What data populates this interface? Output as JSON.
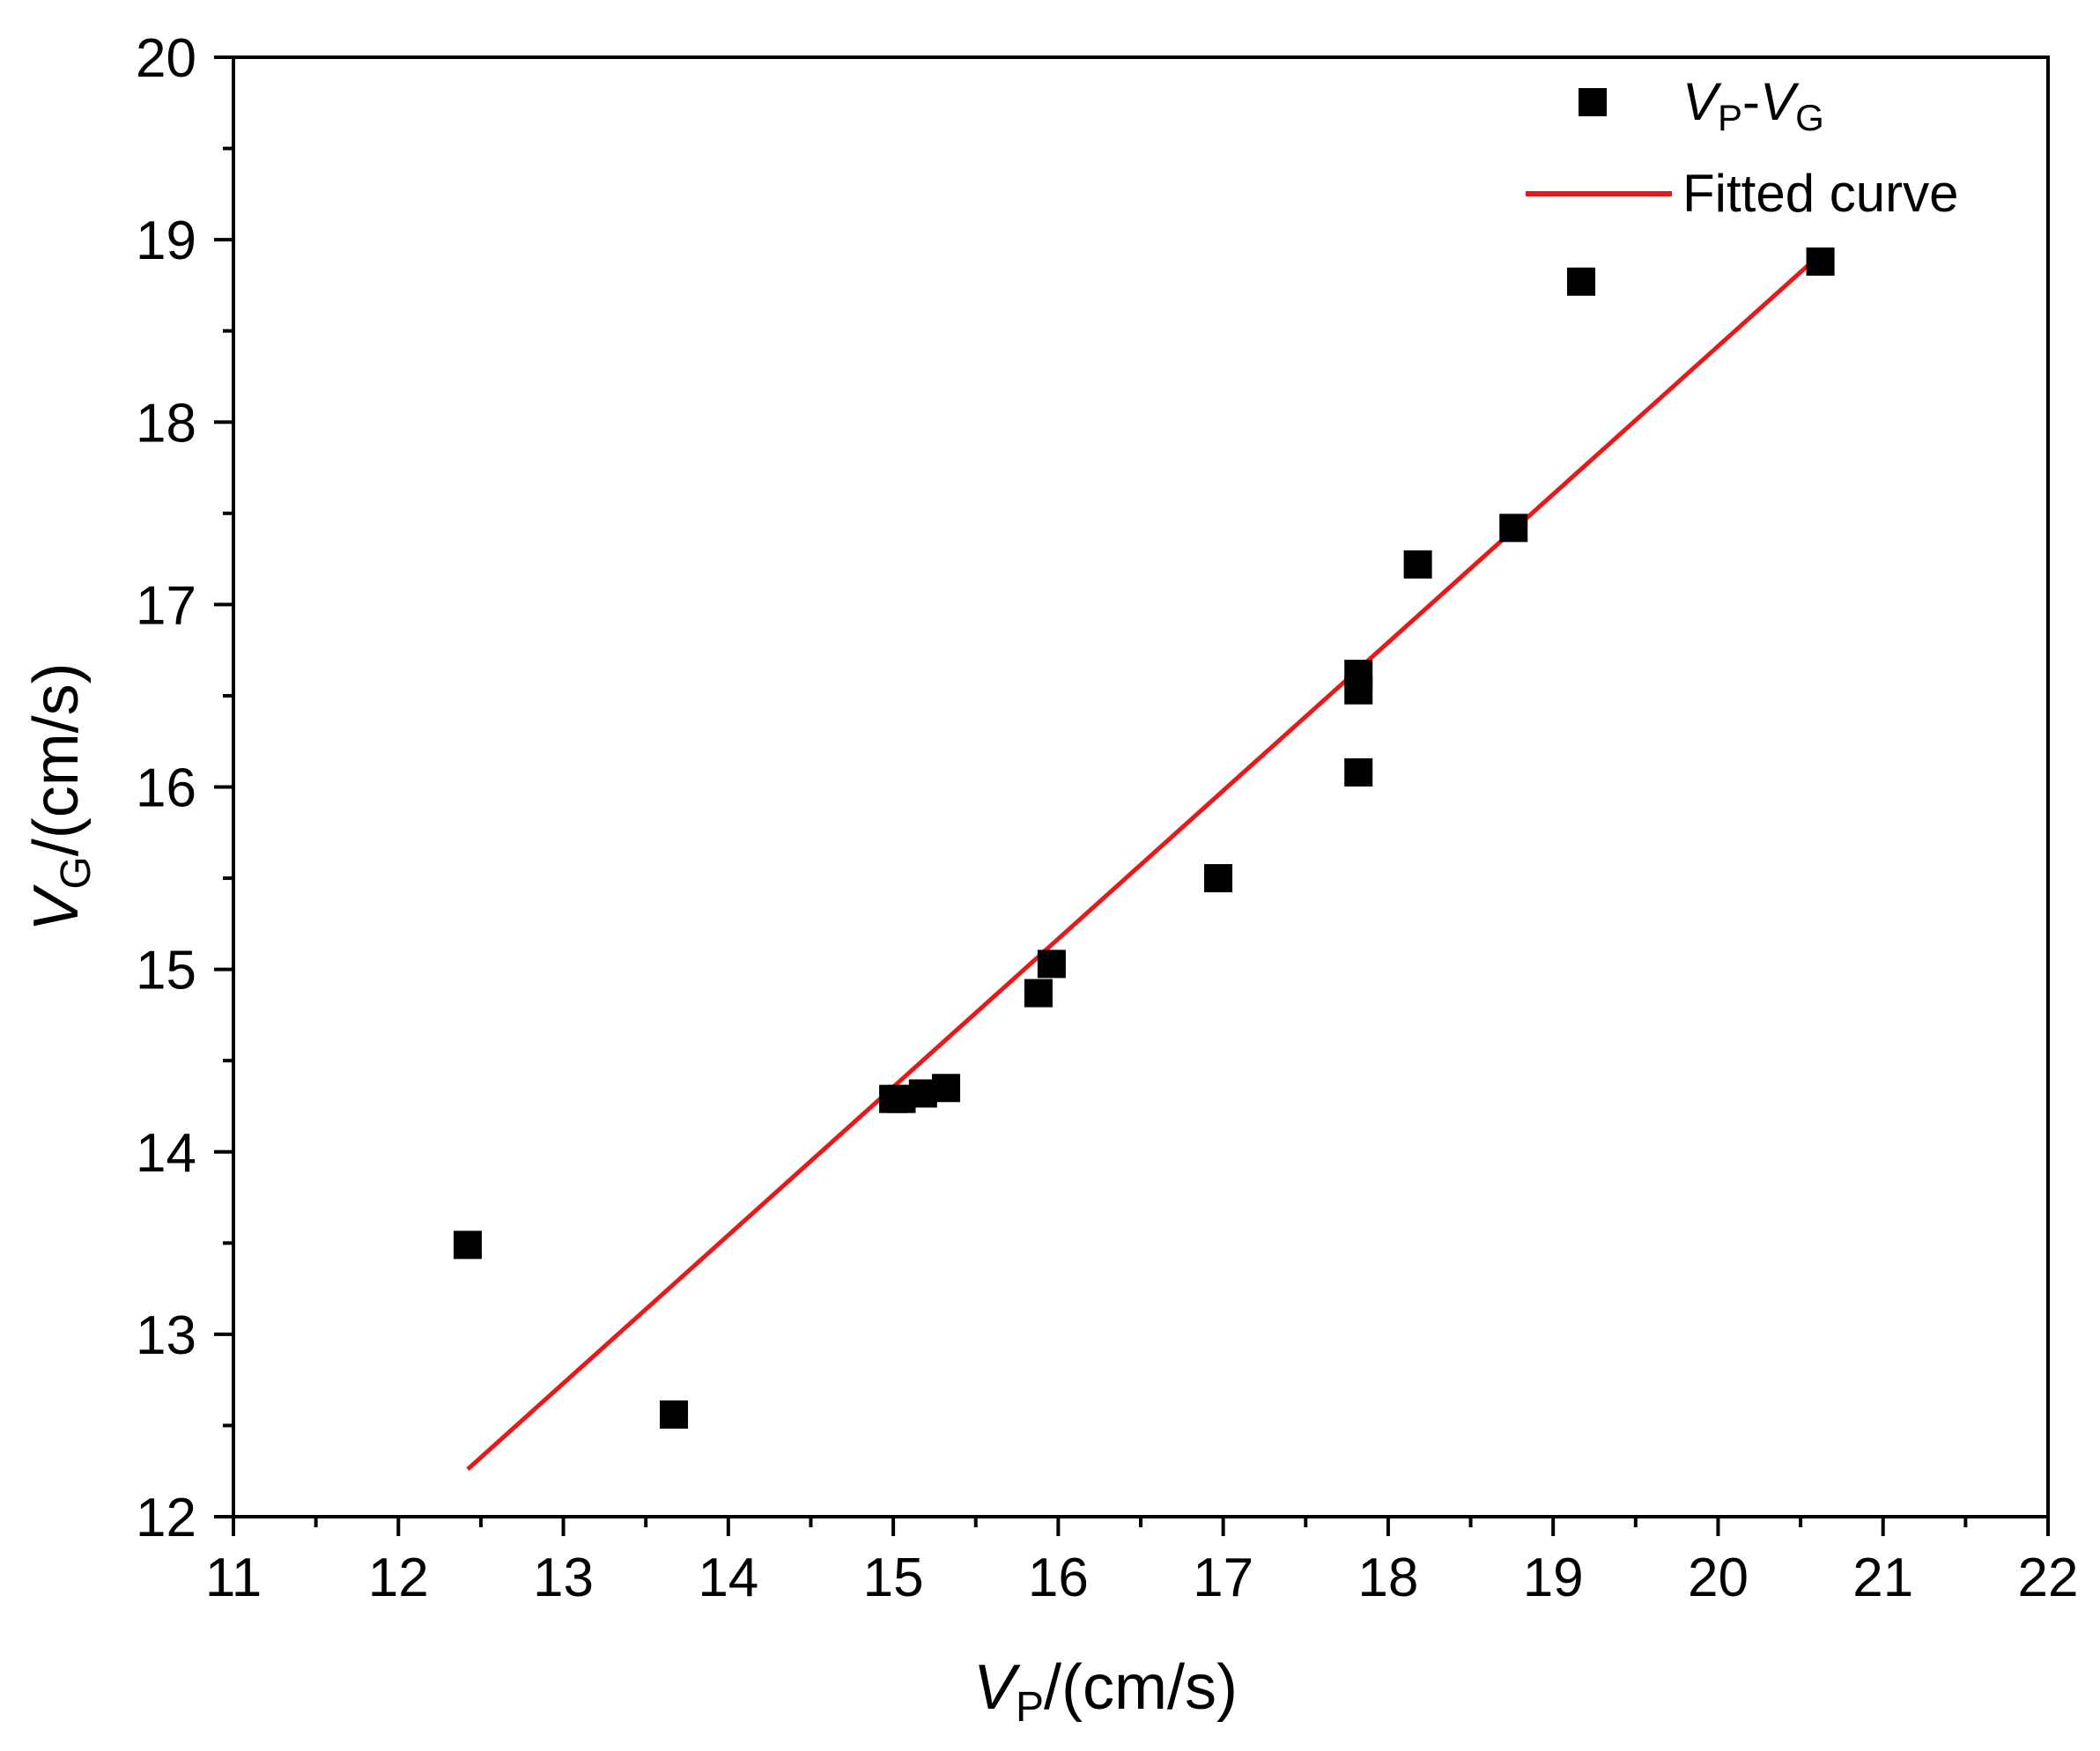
{
  "chart_data": {
    "type": "scatter",
    "title": "",
    "xlabel": {
      "symbol": "V",
      "subscript": "P",
      "unit": "/(cm/s)"
    },
    "ylabel": {
      "symbol": "V",
      "subscript": "G",
      "unit": "/(cm/s)"
    },
    "xlim": [
      11,
      22
    ],
    "ylim": [
      12,
      20
    ],
    "x_ticks": [
      "11",
      "12",
      "13",
      "14",
      "15",
      "16",
      "17",
      "18",
      "19",
      "20",
      "21",
      "22"
    ],
    "y_ticks": [
      "12",
      "13",
      "14",
      "15",
      "16",
      "17",
      "18",
      "19",
      "20"
    ],
    "x_minor_step": 0.5,
    "y_minor_step": 0.5,
    "grid": false,
    "legend_position": "top-right",
    "series": [
      {
        "name": "VP-VG",
        "legend": {
          "main1": "V",
          "sub1": "P",
          "dash": "-",
          "main2": "V",
          "sub2": "G"
        },
        "kind": "scatter",
        "marker": "square",
        "color": "#000000",
        "points": [
          [
            12.42,
            13.49
          ],
          [
            13.67,
            12.56
          ],
          [
            15.0,
            14.29
          ],
          [
            15.05,
            14.29
          ],
          [
            15.18,
            14.32
          ],
          [
            15.32,
            14.35
          ],
          [
            15.88,
            14.87
          ],
          [
            15.96,
            15.03
          ],
          [
            16.97,
            15.5
          ],
          [
            17.82,
            16.08
          ],
          [
            17.82,
            16.53
          ],
          [
            17.82,
            16.62
          ],
          [
            18.18,
            17.22
          ],
          [
            18.76,
            17.42
          ],
          [
            19.17,
            18.77
          ],
          [
            20.62,
            18.88
          ]
        ]
      },
      {
        "name": "Fitted curve",
        "kind": "line",
        "color": "#e8191b",
        "points": [
          [
            12.42,
            12.26
          ],
          [
            20.62,
            18.92
          ]
        ]
      }
    ]
  }
}
